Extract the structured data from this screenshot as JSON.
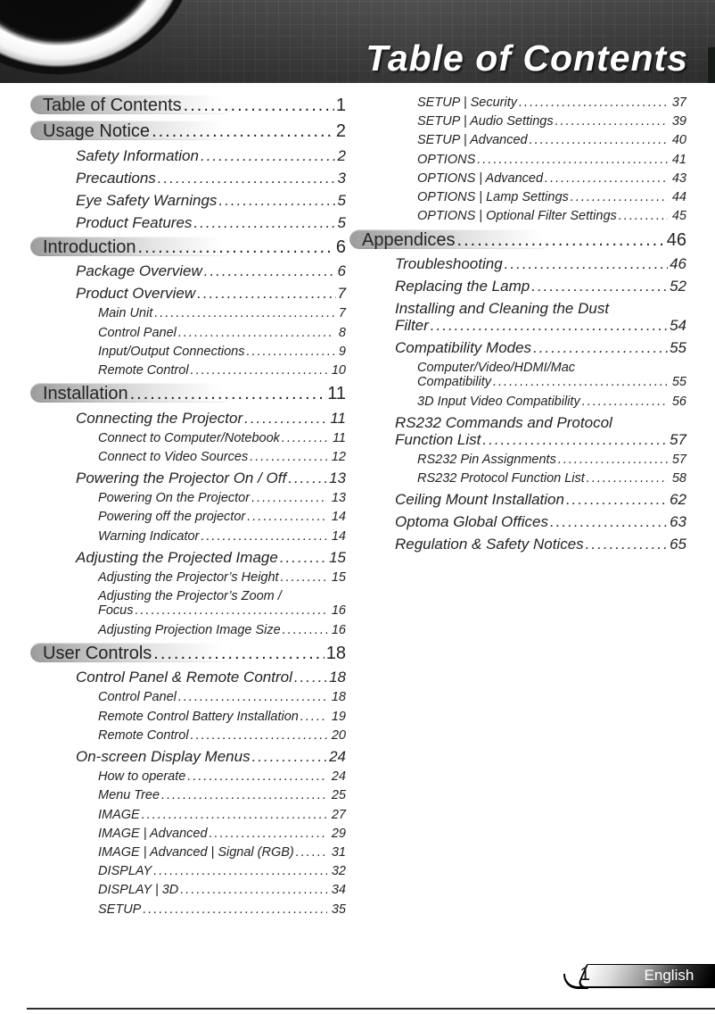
{
  "header": {
    "title": "Table of Contents"
  },
  "footer": {
    "page_number": "1",
    "language_label": "English"
  },
  "colors": {
    "banner_background": "#3d3d3d",
    "banner_title": "#ffffff",
    "text": "#232323",
    "heading_pill": "#9c9c9c"
  },
  "toc": {
    "left_column": [
      {
        "level": 1,
        "label": "Table of Contents",
        "page": "1"
      },
      {
        "level": 1,
        "label": "Usage Notice",
        "page": "2"
      },
      {
        "level": 2,
        "label": "Safety Information",
        "page": "2"
      },
      {
        "level": 2,
        "label": "Precautions",
        "page": "3"
      },
      {
        "level": 2,
        "label": "Eye Safety Warnings",
        "page": "5"
      },
      {
        "level": 2,
        "label": "Product Features",
        "page": "5"
      },
      {
        "level": 1,
        "label": "Introduction",
        "page": "6"
      },
      {
        "level": 2,
        "label": "Package Overview",
        "page": "6"
      },
      {
        "level": 2,
        "label": "Product Overview",
        "page": "7"
      },
      {
        "level": 3,
        "label": "Main Unit",
        "page": "7"
      },
      {
        "level": 3,
        "label": "Control Panel",
        "page": "8"
      },
      {
        "level": 3,
        "label": "Input/Output Connections",
        "page": "9"
      },
      {
        "level": 3,
        "label": "Remote Control",
        "page": "10"
      },
      {
        "level": 1,
        "label": "Installation",
        "page": "11"
      },
      {
        "level": 2,
        "label": "Connecting the Projector",
        "page": "11"
      },
      {
        "level": 3,
        "label": "Connect to Computer/Notebook",
        "page": "11"
      },
      {
        "level": 3,
        "label": "Connect to Video Sources",
        "page": "12"
      },
      {
        "level": 2,
        "label": "Powering the Projector On / Off",
        "page": "13"
      },
      {
        "level": 3,
        "label": "Powering On the Projector",
        "page": "13"
      },
      {
        "level": 3,
        "label": "Powering off the projector",
        "page": "14"
      },
      {
        "level": 3,
        "label": "Warning Indicator",
        "page": "14"
      },
      {
        "level": 2,
        "label": "Adjusting the Projected Image",
        "page": "15"
      },
      {
        "level": 3,
        "label": "Adjusting the Projector’s Height",
        "page": "15"
      },
      {
        "level": 3,
        "label": "Adjusting the Projector’s Zoom /",
        "label2": "Focus",
        "page": "16"
      },
      {
        "level": 3,
        "label": "Adjusting Projection Image Size",
        "page": "16"
      },
      {
        "level": 1,
        "label": "User Controls",
        "page": "18"
      },
      {
        "level": 2,
        "label": "Control Panel & Remote Control",
        "page": "18"
      },
      {
        "level": 3,
        "label": "Control Panel",
        "page": "18"
      },
      {
        "level": 3,
        "label": "Remote Control Battery Installation",
        "page": "19"
      },
      {
        "level": 3,
        "label": "Remote Control",
        "page": "20"
      },
      {
        "level": 2,
        "label": "On-screen Display Menus",
        "page": "24"
      },
      {
        "level": 3,
        "label": "How to operate",
        "page": "24"
      },
      {
        "level": 3,
        "label": "Menu Tree",
        "page": "25"
      },
      {
        "level": 3,
        "label": "IMAGE",
        "page": "27"
      },
      {
        "level": 3,
        "label": "IMAGE | Advanced",
        "page": "29"
      },
      {
        "level": 3,
        "label": "IMAGE | Advanced | Signal (RGB)",
        "page": "31"
      },
      {
        "level": 3,
        "label": "DISPLAY",
        "page": "32"
      },
      {
        "level": 3,
        "label": "DISPLAY | 3D",
        "page": "34"
      },
      {
        "level": 3,
        "label": "SETUP",
        "page": "35"
      }
    ],
    "right_column": [
      {
        "level": 3,
        "label": "SETUP | Security",
        "page": "37"
      },
      {
        "level": 3,
        "label": "SETUP | Audio Settings",
        "page": "39"
      },
      {
        "level": 3,
        "label": "SETUP | Advanced",
        "page": "40"
      },
      {
        "level": 3,
        "label": "OPTIONS",
        "page": "41"
      },
      {
        "level": 3,
        "label": "OPTIONS | Advanced",
        "page": "43"
      },
      {
        "level": 3,
        "label": "OPTIONS | Lamp Settings",
        "page": "44"
      },
      {
        "level": 3,
        "label": "OPTIONS | Optional Filter Settings",
        "page": "45"
      },
      {
        "level": 1,
        "label": "Appendices",
        "page": "46"
      },
      {
        "level": 2,
        "label": "Troubleshooting",
        "page": "46"
      },
      {
        "level": 2,
        "label": "Replacing the Lamp",
        "page": "52"
      },
      {
        "level": 2,
        "label": "Installing and Cleaning the Dust",
        "label2": "Filter",
        "page": "54"
      },
      {
        "level": 2,
        "label": "Compatibility Modes",
        "page": "55"
      },
      {
        "level": 3,
        "label": "Computer/Video/HDMI/Mac",
        "label2": "Compatibility",
        "page": "55"
      },
      {
        "level": 3,
        "label": "3D Input Video Compatibility",
        "page": "56"
      },
      {
        "level": 2,
        "label": "RS232 Commands and Protocol",
        "label2": "Function List",
        "page": "57"
      },
      {
        "level": 3,
        "label": "RS232 Pin Assignments",
        "page": "57"
      },
      {
        "level": 3,
        "label": "RS232 Protocol Function List",
        "page": "58"
      },
      {
        "level": 2,
        "label": "Ceiling Mount Installation",
        "page": "62"
      },
      {
        "level": 2,
        "label": "Optoma Global Offices",
        "page": "63"
      },
      {
        "level": 2,
        "label": "Regulation & Safety Notices",
        "page": "65"
      }
    ]
  }
}
